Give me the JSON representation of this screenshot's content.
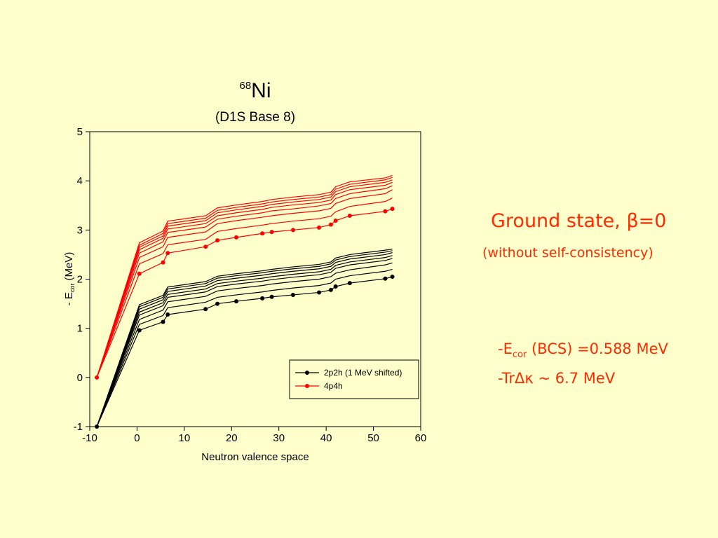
{
  "chart_data": {
    "type": "line",
    "title_sup": "68",
    "title_main": "Ni",
    "subtitle": "(D1S  Base 8)",
    "xlabel": "Neutron valence space",
    "ylabel_prefix": "- E",
    "ylabel_sub": "cor",
    "ylabel_suffix": " (MeV)",
    "xlim": [
      -10,
      60
    ],
    "ylim": [
      -1,
      5
    ],
    "xticks": [
      "-10",
      "0",
      "10",
      "20",
      "30",
      "40",
      "50",
      "60"
    ],
    "yticks": [
      "-1",
      "0",
      "1",
      "2",
      "3",
      "4",
      "5"
    ],
    "legend_position": "bottom-right",
    "x": [
      -8.5,
      0.5,
      5.5,
      6.5,
      14.5,
      17,
      21,
      26.5,
      28.5,
      33,
      38.5,
      41,
      42,
      45,
      52.5,
      54
    ],
    "series": [
      {
        "name": "2p2h (1 MeV shifted)",
        "color": "#000000",
        "markers": true,
        "values": [
          -1,
          0.96,
          1.13,
          1.28,
          1.39,
          1.5,
          1.55,
          1.61,
          1.64,
          1.68,
          1.73,
          1.78,
          1.85,
          1.92,
          2.01,
          2.05
        ]
      },
      {
        "name": "4p4h",
        "color": "#ff0000",
        "markers": true,
        "values": [
          0,
          2.11,
          2.34,
          2.53,
          2.66,
          2.79,
          2.85,
          2.93,
          2.96,
          3.0,
          3.05,
          3.11,
          3.19,
          3.29,
          3.38,
          3.43
        ]
      }
    ],
    "extra_lines_black": [
      [
        -1,
        1.08,
        1.26,
        1.42,
        1.53,
        1.63,
        1.68,
        1.74,
        1.77,
        1.82,
        1.87,
        1.92,
        2.0,
        2.07,
        2.16,
        2.2
      ],
      [
        -1,
        1.18,
        1.37,
        1.54,
        1.65,
        1.76,
        1.81,
        1.87,
        1.9,
        1.95,
        2.0,
        2.05,
        2.12,
        2.19,
        2.29,
        2.33
      ],
      [
        -1,
        1.27,
        1.46,
        1.63,
        1.74,
        1.85,
        1.9,
        1.96,
        1.99,
        2.04,
        2.09,
        2.14,
        2.22,
        2.29,
        2.38,
        2.42
      ],
      [
        -1,
        1.33,
        1.52,
        1.69,
        1.8,
        1.91,
        1.96,
        2.02,
        2.05,
        2.1,
        2.15,
        2.2,
        2.28,
        2.35,
        2.44,
        2.48
      ],
      [
        -1,
        1.39,
        1.58,
        1.75,
        1.86,
        1.97,
        2.02,
        2.08,
        2.11,
        2.16,
        2.21,
        2.26,
        2.34,
        2.41,
        2.5,
        2.54
      ],
      [
        -1,
        1.44,
        1.63,
        1.8,
        1.91,
        2.02,
        2.07,
        2.13,
        2.16,
        2.21,
        2.26,
        2.31,
        2.39,
        2.46,
        2.55,
        2.58
      ],
      [
        -1,
        1.48,
        1.67,
        1.84,
        1.95,
        2.06,
        2.11,
        2.17,
        2.2,
        2.25,
        2.3,
        2.35,
        2.43,
        2.5,
        2.59,
        2.61
      ]
    ],
    "extra_lines_red": [
      [
        0,
        2.31,
        2.52,
        2.7,
        2.81,
        2.97,
        3.03,
        3.1,
        3.13,
        3.18,
        3.23,
        3.28,
        3.37,
        3.48,
        3.58,
        3.65
      ],
      [
        0,
        2.44,
        2.66,
        2.85,
        2.96,
        3.13,
        3.19,
        3.26,
        3.29,
        3.34,
        3.39,
        3.44,
        3.54,
        3.64,
        3.74,
        3.82
      ],
      [
        0,
        2.53,
        2.76,
        2.95,
        3.06,
        3.22,
        3.28,
        3.35,
        3.39,
        3.43,
        3.49,
        3.54,
        3.64,
        3.74,
        3.84,
        3.9
      ],
      [
        0,
        2.6,
        2.83,
        3.02,
        3.13,
        3.29,
        3.35,
        3.42,
        3.46,
        3.51,
        3.56,
        3.61,
        3.72,
        3.82,
        3.91,
        3.97
      ],
      [
        0,
        2.65,
        2.88,
        3.08,
        3.19,
        3.35,
        3.41,
        3.48,
        3.52,
        3.57,
        3.62,
        3.67,
        3.78,
        3.88,
        3.97,
        4.02
      ],
      [
        0,
        2.69,
        2.93,
        3.13,
        3.24,
        3.4,
        3.46,
        3.53,
        3.57,
        3.62,
        3.67,
        3.72,
        3.83,
        3.93,
        4.02,
        4.07
      ],
      [
        0,
        2.74,
        2.98,
        3.18,
        3.29,
        3.45,
        3.51,
        3.58,
        3.62,
        3.67,
        3.72,
        3.77,
        3.88,
        3.98,
        4.06,
        4.11
      ]
    ]
  },
  "notes": {
    "ground_state": "Ground state,  β=0",
    "without_sc": "(without self-consistency)",
    "ecor_prefix": "-E",
    "ecor_sub": "cor",
    "ecor_suffix": " (BCS) =0.588 MeV",
    "tr": "-TrΔκ ~ 6.7 MeV"
  }
}
